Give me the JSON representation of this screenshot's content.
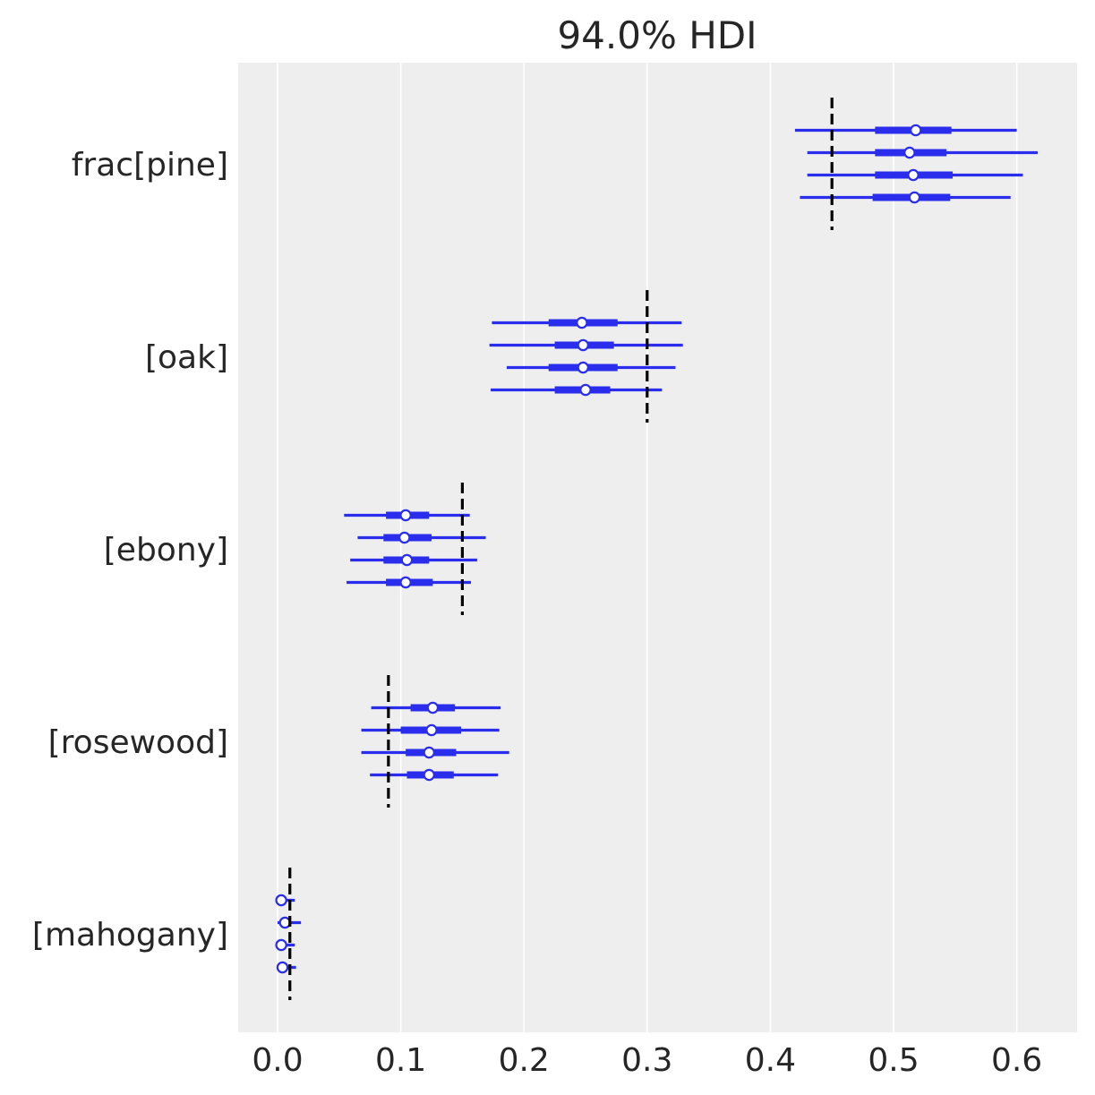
{
  "chart_data": {
    "type": "forest",
    "title": "94.0% HDI",
    "xlabel": "",
    "ylabel": "",
    "xlim": [
      -0.032,
      0.65
    ],
    "xticks": [
      "0.0",
      "0.1",
      "0.2",
      "0.3",
      "0.4",
      "0.5",
      "0.6"
    ],
    "grid": "vertical",
    "chains": 4,
    "colors": {
      "interval": "#2a2eec",
      "reference": "#000000",
      "background": "#eeeeee",
      "grid": "#ffffff",
      "marker_fill": "#ffffff"
    },
    "variables": [
      {
        "label": "frac[pine]",
        "reference": 0.45,
        "chains": [
          {
            "hdi": [
              0.42,
              0.6
            ],
            "iqr": [
              0.485,
              0.547
            ],
            "mean": 0.518
          },
          {
            "hdi": [
              0.43,
              0.617
            ],
            "iqr": [
              0.485,
              0.543
            ],
            "mean": 0.513
          },
          {
            "hdi": [
              0.43,
              0.605
            ],
            "iqr": [
              0.485,
              0.548
            ],
            "mean": 0.516
          },
          {
            "hdi": [
              0.424,
              0.595
            ],
            "iqr": [
              0.483,
              0.546
            ],
            "mean": 0.517
          }
        ]
      },
      {
        "label": "[oak]",
        "reference": 0.3,
        "chains": [
          {
            "hdi": [
              0.174,
              0.328
            ],
            "iqr": [
              0.22,
              0.276
            ],
            "mean": 0.247
          },
          {
            "hdi": [
              0.172,
              0.329
            ],
            "iqr": [
              0.225,
              0.273
            ],
            "mean": 0.248
          },
          {
            "hdi": [
              0.186,
              0.323
            ],
            "iqr": [
              0.22,
              0.276
            ],
            "mean": 0.248
          },
          {
            "hdi": [
              0.173,
              0.312
            ],
            "iqr": [
              0.225,
              0.27
            ],
            "mean": 0.25
          }
        ]
      },
      {
        "label": "[ebony]",
        "reference": 0.15,
        "chains": [
          {
            "hdi": [
              0.054,
              0.156
            ],
            "iqr": [
              0.088,
              0.123
            ],
            "mean": 0.104
          },
          {
            "hdi": [
              0.065,
              0.169
            ],
            "iqr": [
              0.086,
              0.125
            ],
            "mean": 0.103
          },
          {
            "hdi": [
              0.059,
              0.162
            ],
            "iqr": [
              0.086,
              0.123
            ],
            "mean": 0.105
          },
          {
            "hdi": [
              0.056,
              0.157
            ],
            "iqr": [
              0.088,
              0.126
            ],
            "mean": 0.104
          }
        ]
      },
      {
        "label": "[rosewood]",
        "reference": 0.09,
        "chains": [
          {
            "hdi": [
              0.076,
              0.181
            ],
            "iqr": [
              0.108,
              0.144
            ],
            "mean": 0.126
          },
          {
            "hdi": [
              0.068,
              0.18
            ],
            "iqr": [
              0.1,
              0.149
            ],
            "mean": 0.125
          },
          {
            "hdi": [
              0.068,
              0.188
            ],
            "iqr": [
              0.104,
              0.145
            ],
            "mean": 0.123
          },
          {
            "hdi": [
              0.075,
              0.179
            ],
            "iqr": [
              0.105,
              0.143
            ],
            "mean": 0.123
          }
        ]
      },
      {
        "label": "[mahogany]",
        "reference": 0.01,
        "chains": [
          {
            "hdi": [
              0.0,
              0.014
            ],
            "iqr": [
              0.0,
              0.006
            ],
            "mean": 0.003
          },
          {
            "hdi": [
              0.0,
              0.019
            ],
            "iqr": [
              0.003,
              0.01
            ],
            "mean": 0.006
          },
          {
            "hdi": [
              0.0,
              0.014
            ],
            "iqr": [
              0.0,
              0.006
            ],
            "mean": 0.003
          },
          {
            "hdi": [
              0.0,
              0.015
            ],
            "iqr": [
              0.0,
              0.006
            ],
            "mean": 0.004
          }
        ]
      }
    ]
  }
}
